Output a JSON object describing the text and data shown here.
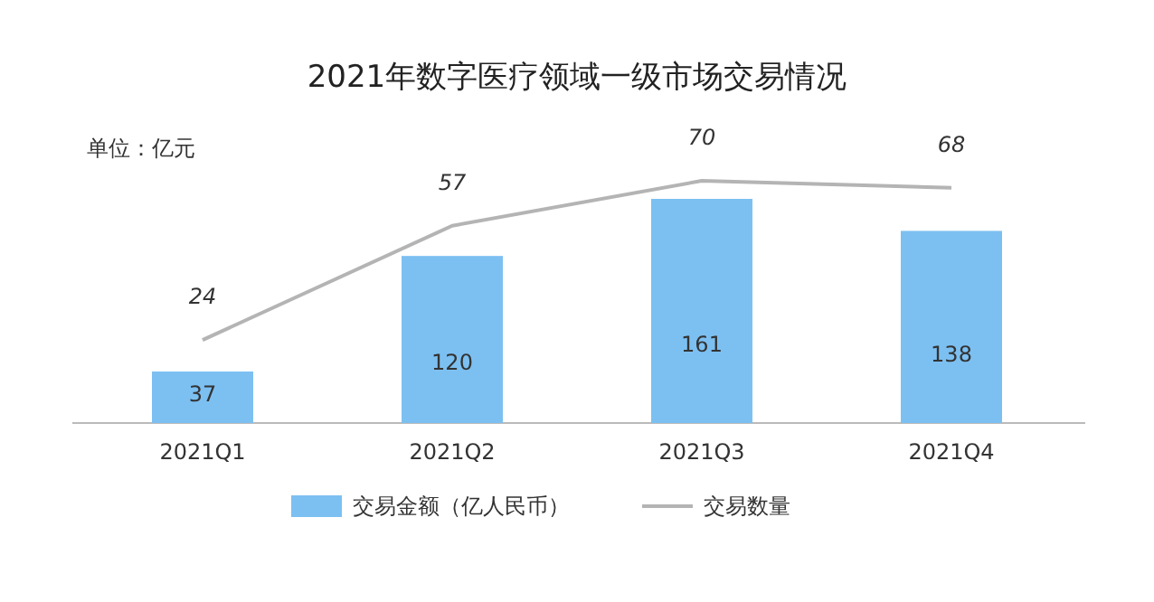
{
  "chart_data": {
    "type": "bar",
    "title": "2021年数字医疗领域一级市场交易情况",
    "annotations": [
      "单位：亿元"
    ],
    "categories": [
      "2021Q1",
      "2021Q2",
      "2021Q3",
      "2021Q4"
    ],
    "series": [
      {
        "name": "交易金额（亿人民币）",
        "color": "#7cc0f2",
        "values": [
          37,
          120,
          161,
          138
        ]
      },
      {
        "name": "交易数量",
        "type": "line",
        "axis": "y2",
        "color": "#b4b4b4",
        "values": [
          24,
          57,
          70,
          68
        ]
      }
    ],
    "data_labels": true,
    "legend": "bottom"
  }
}
